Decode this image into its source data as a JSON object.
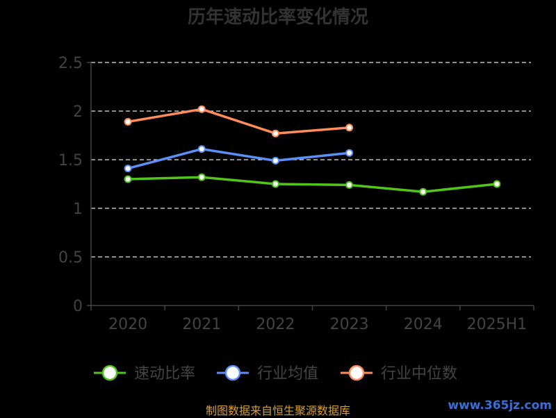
{
  "chart_data": {
    "type": "line",
    "title": "历年速动比率变化情况",
    "categories": [
      "2020",
      "2021",
      "2022",
      "2023",
      "2024",
      "2025H1"
    ],
    "ylim": [
      0,
      2.5
    ],
    "yticks": [
      "0",
      "0.5",
      "1",
      "1.5",
      "2",
      "2.5"
    ],
    "grid": true,
    "legend_position": "bottom",
    "series": [
      {
        "name": "速动比率",
        "color": "#52c41a",
        "values": [
          1.3,
          1.32,
          1.25,
          1.24,
          1.17,
          1.25
        ]
      },
      {
        "name": "行业均值",
        "color": "#5b8ff9",
        "values": [
          1.41,
          1.61,
          1.49,
          1.57,
          null,
          null
        ]
      },
      {
        "name": "行业中位数",
        "color": "#ff8c5a",
        "values": [
          1.89,
          2.02,
          1.77,
          1.83,
          null,
          null
        ]
      }
    ]
  },
  "footer": {
    "source": "制图数据来自恒生聚源数据库",
    "watermark": "www.365jz.com"
  }
}
